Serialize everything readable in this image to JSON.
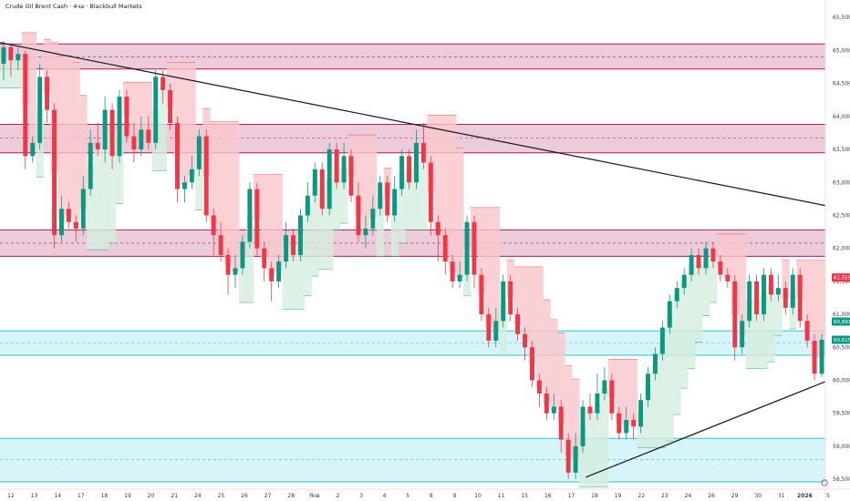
{
  "header": {
    "title": "Crude Oil Brent Cash · 4ча · Blackbull Markets"
  },
  "colors": {
    "bull": "#089981",
    "bear": "#f23645",
    "resistance_fill": "#e6b9cf",
    "resistance_line": "#b5174f",
    "support_fill": "#c9f0f5",
    "support_line": "#26c6da",
    "trend": "#131722",
    "trail_bear_fill": "#f9c7cc",
    "trail_bull_fill": "#d5eedd"
  },
  "chart_data": {
    "type": "candlestick",
    "ylim": [
      58.35,
      65.6
    ],
    "y_ticks": [
      "65,500",
      "65,000",
      "64,500",
      "64,000",
      "63,500",
      "63,000",
      "62,500",
      "62,000",
      "61,500",
      "61,000",
      "60,500",
      "60,000",
      "59,500",
      "59,000",
      "58,500"
    ],
    "x_ticks": [
      "12",
      "13",
      "14",
      "17",
      "18",
      "19",
      "20",
      "21",
      "24",
      "25",
      "26",
      "27",
      "28",
      "Янв",
      "2",
      "3",
      "4",
      "5",
      "8",
      "9",
      "10",
      "11",
      "15",
      "16",
      "17",
      "18",
      "19",
      "22",
      "23",
      "24",
      "26",
      "29",
      "30",
      "31",
      "2026",
      "5"
    ],
    "price_badges": [
      {
        "label": "61,559",
        "value": 61.559,
        "color": "#f23645"
      },
      {
        "label": "60,891",
        "value": 60.891,
        "color": "#089981"
      },
      {
        "label": "60,615",
        "value": 60.615,
        "color": "#089981"
      }
    ],
    "zones": [
      {
        "kind": "resistance",
        "top": 65.1,
        "bottom": 64.72,
        "mid": 64.9
      },
      {
        "kind": "resistance",
        "top": 63.88,
        "bottom": 63.45,
        "mid": 63.67
      },
      {
        "kind": "resistance",
        "top": 62.28,
        "bottom": 61.88,
        "mid": 62.08
      },
      {
        "kind": "support",
        "top": 60.75,
        "bottom": 60.38,
        "mid": 60.57
      },
      {
        "kind": "support",
        "top": 59.12,
        "bottom": 58.46,
        "mid": 58.8
      }
    ],
    "trendlines": [
      {
        "name": "descending",
        "from": [
          0,
          65.12
        ],
        "to": [
          148,
          62.65
        ]
      },
      {
        "name": "ascending",
        "from": [
          105,
          58.53
        ],
        "to": [
          148,
          59.98
        ]
      }
    ],
    "candles": [
      [
        64.8,
        65.05,
        65.15,
        64.55
      ],
      [
        65.05,
        64.85,
        65.1,
        64.6
      ],
      [
        64.85,
        64.95,
        65.05,
        64.7
      ],
      [
        64.95,
        63.4,
        65.0,
        63.2
      ],
      [
        63.4,
        63.6,
        63.7,
        63.3
      ],
      [
        63.6,
        64.6,
        64.8,
        63.5
      ],
      [
        64.6,
        64.1,
        64.7,
        63.9
      ],
      [
        64.1,
        62.2,
        64.2,
        62.0
      ],
      [
        62.2,
        62.6,
        62.8,
        62.1
      ],
      [
        62.6,
        62.4,
        62.7,
        62.3
      ],
      [
        62.4,
        62.3,
        62.5,
        62.1
      ],
      [
        62.3,
        62.9,
        63.1,
        62.2
      ],
      [
        62.9,
        63.6,
        63.8,
        62.8
      ],
      [
        63.6,
        63.5,
        63.9,
        63.4
      ],
      [
        63.5,
        64.1,
        64.3,
        63.3
      ],
      [
        64.1,
        63.4,
        64.2,
        63.2
      ],
      [
        63.4,
        64.3,
        64.4,
        63.3
      ],
      [
        64.3,
        63.7,
        64.4,
        63.6
      ],
      [
        63.7,
        63.5,
        63.9,
        63.3
      ],
      [
        63.5,
        63.8,
        64.0,
        63.4
      ],
      [
        63.8,
        63.6,
        64.0,
        63.5
      ],
      [
        63.6,
        64.6,
        64.7,
        63.5
      ],
      [
        64.6,
        64.4,
        64.7,
        64.2
      ],
      [
        64.4,
        63.9,
        64.5,
        63.8
      ],
      [
        63.9,
        62.9,
        64.0,
        62.7
      ],
      [
        62.9,
        63.0,
        63.1,
        62.7
      ],
      [
        63.0,
        63.2,
        63.4,
        62.9
      ],
      [
        63.2,
        63.7,
        63.8,
        63.1
      ],
      [
        63.7,
        62.5,
        63.8,
        62.4
      ],
      [
        62.5,
        62.2,
        62.6,
        61.9
      ],
      [
        62.2,
        61.9,
        62.4,
        61.8
      ],
      [
        61.9,
        61.6,
        62.0,
        61.3
      ],
      [
        61.6,
        61.7,
        61.9,
        61.4
      ],
      [
        61.7,
        62.1,
        62.2,
        61.6
      ],
      [
        62.1,
        62.9,
        63.0,
        62.0
      ],
      [
        62.9,
        62.0,
        63.0,
        61.9
      ],
      [
        62.0,
        61.7,
        62.1,
        61.5
      ],
      [
        61.7,
        61.5,
        61.8,
        61.2
      ],
      [
        61.5,
        61.8,
        61.9,
        61.4
      ],
      [
        61.8,
        62.2,
        62.4,
        61.7
      ],
      [
        62.2,
        61.9,
        62.3,
        61.8
      ],
      [
        61.9,
        62.5,
        62.6,
        61.8
      ],
      [
        62.5,
        62.8,
        63.0,
        62.4
      ],
      [
        62.8,
        63.2,
        63.3,
        62.7
      ],
      [
        63.2,
        62.6,
        63.3,
        62.5
      ],
      [
        62.6,
        63.5,
        63.6,
        62.5
      ],
      [
        63.5,
        63.0,
        63.6,
        62.9
      ],
      [
        63.0,
        63.4,
        63.6,
        62.9
      ],
      [
        63.4,
        62.8,
        63.5,
        62.7
      ],
      [
        62.8,
        62.2,
        63.0,
        62.1
      ],
      [
        62.2,
        62.3,
        62.5,
        62.0
      ],
      [
        62.3,
        62.6,
        62.8,
        62.2
      ],
      [
        62.6,
        63.0,
        63.1,
        62.5
      ],
      [
        63.0,
        62.5,
        63.1,
        62.4
      ],
      [
        62.5,
        62.9,
        63.1,
        62.4
      ],
      [
        62.9,
        63.4,
        63.5,
        62.8
      ],
      [
        63.4,
        63.0,
        63.5,
        62.9
      ],
      [
        63.0,
        63.6,
        63.8,
        62.9
      ],
      [
        63.6,
        63.3,
        63.9,
        63.2
      ],
      [
        63.3,
        62.4,
        63.4,
        62.2
      ],
      [
        62.4,
        62.2,
        62.5,
        61.8
      ],
      [
        62.2,
        61.8,
        62.3,
        61.6
      ],
      [
        61.8,
        61.5,
        61.9,
        61.4
      ],
      [
        61.5,
        61.6,
        61.8,
        61.4
      ],
      [
        61.6,
        62.4,
        62.5,
        61.5
      ],
      [
        62.4,
        61.6,
        62.5,
        61.4
      ],
      [
        61.6,
        61.0,
        61.7,
        60.9
      ],
      [
        61.0,
        60.6,
        61.1,
        60.5
      ],
      [
        60.6,
        60.9,
        61.1,
        60.5
      ],
      [
        60.9,
        61.5,
        61.6,
        60.8
      ],
      [
        61.5,
        61.0,
        61.6,
        60.9
      ],
      [
        61.0,
        60.7,
        61.1,
        60.6
      ],
      [
        60.7,
        60.5,
        60.8,
        60.3
      ],
      [
        60.5,
        60.0,
        60.6,
        59.9
      ],
      [
        60.0,
        59.8,
        60.1,
        59.6
      ],
      [
        59.8,
        59.5,
        59.9,
        59.4
      ],
      [
        59.5,
        59.6,
        59.8,
        59.4
      ],
      [
        59.6,
        59.1,
        59.7,
        58.9
      ],
      [
        59.1,
        58.6,
        59.2,
        58.5
      ],
      [
        58.6,
        59.0,
        59.2,
        58.5
      ],
      [
        59.0,
        59.6,
        59.7,
        58.9
      ],
      [
        59.6,
        59.5,
        59.8,
        59.4
      ],
      [
        59.5,
        59.8,
        60.1,
        59.4
      ],
      [
        59.8,
        60.0,
        60.2,
        59.7
      ],
      [
        60.0,
        59.5,
        60.1,
        59.4
      ],
      [
        59.5,
        59.2,
        59.6,
        59.1
      ],
      [
        59.2,
        59.4,
        59.6,
        59.1
      ],
      [
        59.4,
        59.3,
        59.5,
        59.1
      ],
      [
        59.3,
        59.7,
        59.8,
        59.2
      ],
      [
        59.7,
        60.1,
        60.2,
        59.6
      ],
      [
        60.1,
        60.4,
        60.5,
        60.0
      ],
      [
        60.4,
        60.8,
        60.9,
        60.3
      ],
      [
        60.8,
        61.2,
        61.3,
        60.7
      ],
      [
        61.2,
        61.4,
        61.5,
        61.1
      ],
      [
        61.4,
        61.6,
        61.7,
        61.3
      ],
      [
        61.6,
        61.9,
        62.0,
        61.5
      ],
      [
        61.9,
        61.7,
        62.0,
        61.6
      ],
      [
        61.7,
        62.0,
        62.1,
        61.6
      ],
      [
        62.0,
        61.8,
        62.1,
        61.7
      ],
      [
        61.8,
        61.6,
        61.9,
        61.5
      ],
      [
        61.6,
        61.5,
        61.7,
        61.4
      ],
      [
        61.5,
        60.5,
        61.6,
        60.3
      ],
      [
        60.5,
        60.9,
        61.0,
        60.4
      ],
      [
        60.9,
        61.5,
        61.6,
        60.8
      ],
      [
        61.5,
        61.0,
        61.6,
        60.9
      ],
      [
        61.0,
        61.6,
        61.7,
        60.9
      ],
      [
        61.6,
        61.3,
        61.7,
        61.2
      ],
      [
        61.3,
        61.4,
        61.6,
        61.2
      ],
      [
        61.4,
        61.1,
        61.5,
        61.0
      ],
      [
        61.1,
        61.6,
        61.7,
        61.0
      ],
      [
        61.6,
        60.9,
        61.7,
        60.8
      ],
      [
        60.9,
        60.6,
        61.0,
        60.5
      ],
      [
        60.6,
        60.1,
        60.7,
        60.0
      ],
      [
        60.1,
        60.615,
        60.7,
        60.05
      ]
    ]
  }
}
